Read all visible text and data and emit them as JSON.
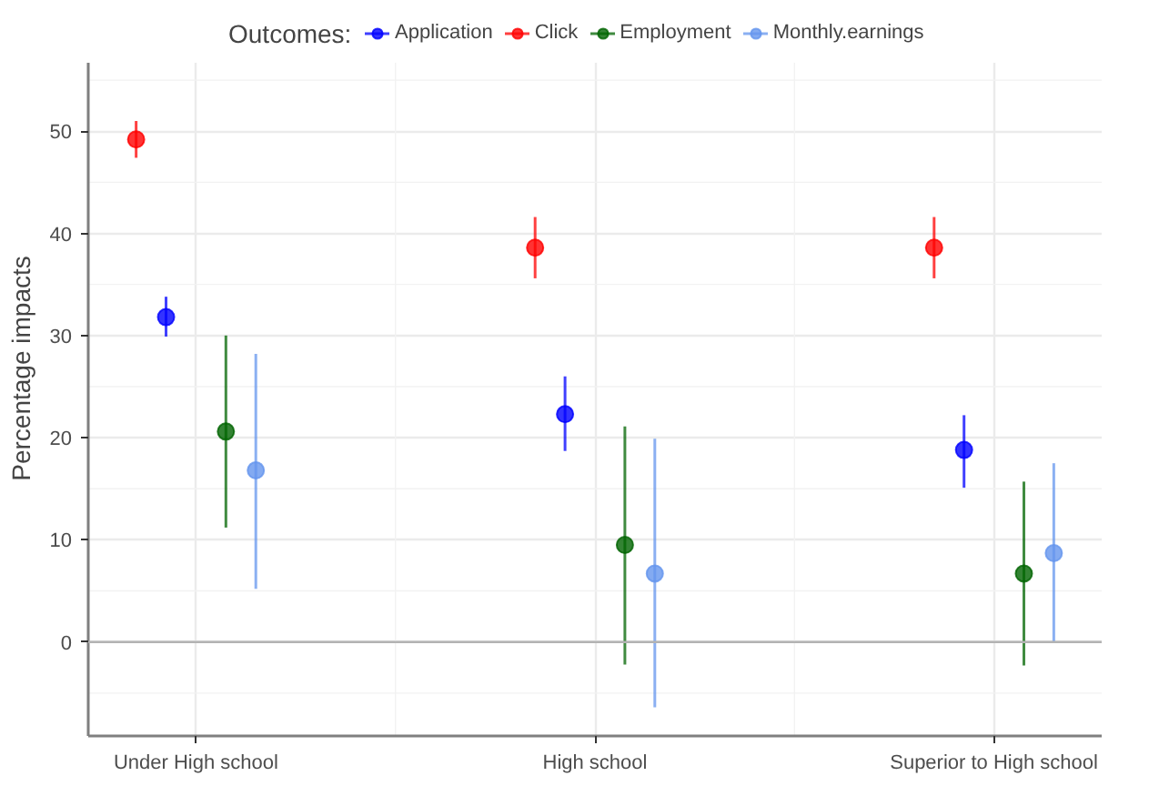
{
  "chart_data": {
    "type": "scatter",
    "ylabel": "Percentage impacts",
    "legend_title": "Outcomes:",
    "categories": [
      "Under High school",
      "High school",
      "Superior to High school"
    ],
    "series": [
      {
        "name": "Click",
        "color": "#ff0000",
        "values": [
          49.2,
          38.6,
          38.6
        ],
        "errors": [
          [
            47.4,
            51.0
          ],
          [
            35.6,
            41.6
          ],
          [
            35.6,
            41.6
          ]
        ]
      },
      {
        "name": "Application",
        "color": "#0000ff",
        "values": [
          31.8,
          22.3,
          18.8
        ],
        "errors": [
          [
            29.9,
            33.8
          ],
          [
            18.7,
            26.0
          ],
          [
            15.1,
            22.2
          ]
        ]
      },
      {
        "name": "Employment",
        "color": "#006400",
        "values": [
          20.6,
          9.5,
          6.7
        ],
        "errors": [
          [
            11.2,
            30.0
          ],
          [
            -2.2,
            21.1
          ],
          [
            -2.3,
            15.7
          ]
        ]
      },
      {
        "name": "Monthly.earnings",
        "color": "#6495ed",
        "values": [
          16.8,
          6.7,
          8.7
        ],
        "errors": [
          [
            5.2,
            28.2
          ],
          [
            -6.4,
            19.9
          ],
          [
            0.0,
            17.5
          ]
        ]
      }
    ],
    "ylim": [
      -9.2,
      56.7
    ],
    "yticks": [
      0,
      10,
      20,
      30,
      40,
      50
    ],
    "ref_lines": [
      {
        "axis": "y",
        "value": 0,
        "color": "#b3b3b3"
      }
    ],
    "grid": true,
    "legend": "top",
    "marker": "circle"
  }
}
